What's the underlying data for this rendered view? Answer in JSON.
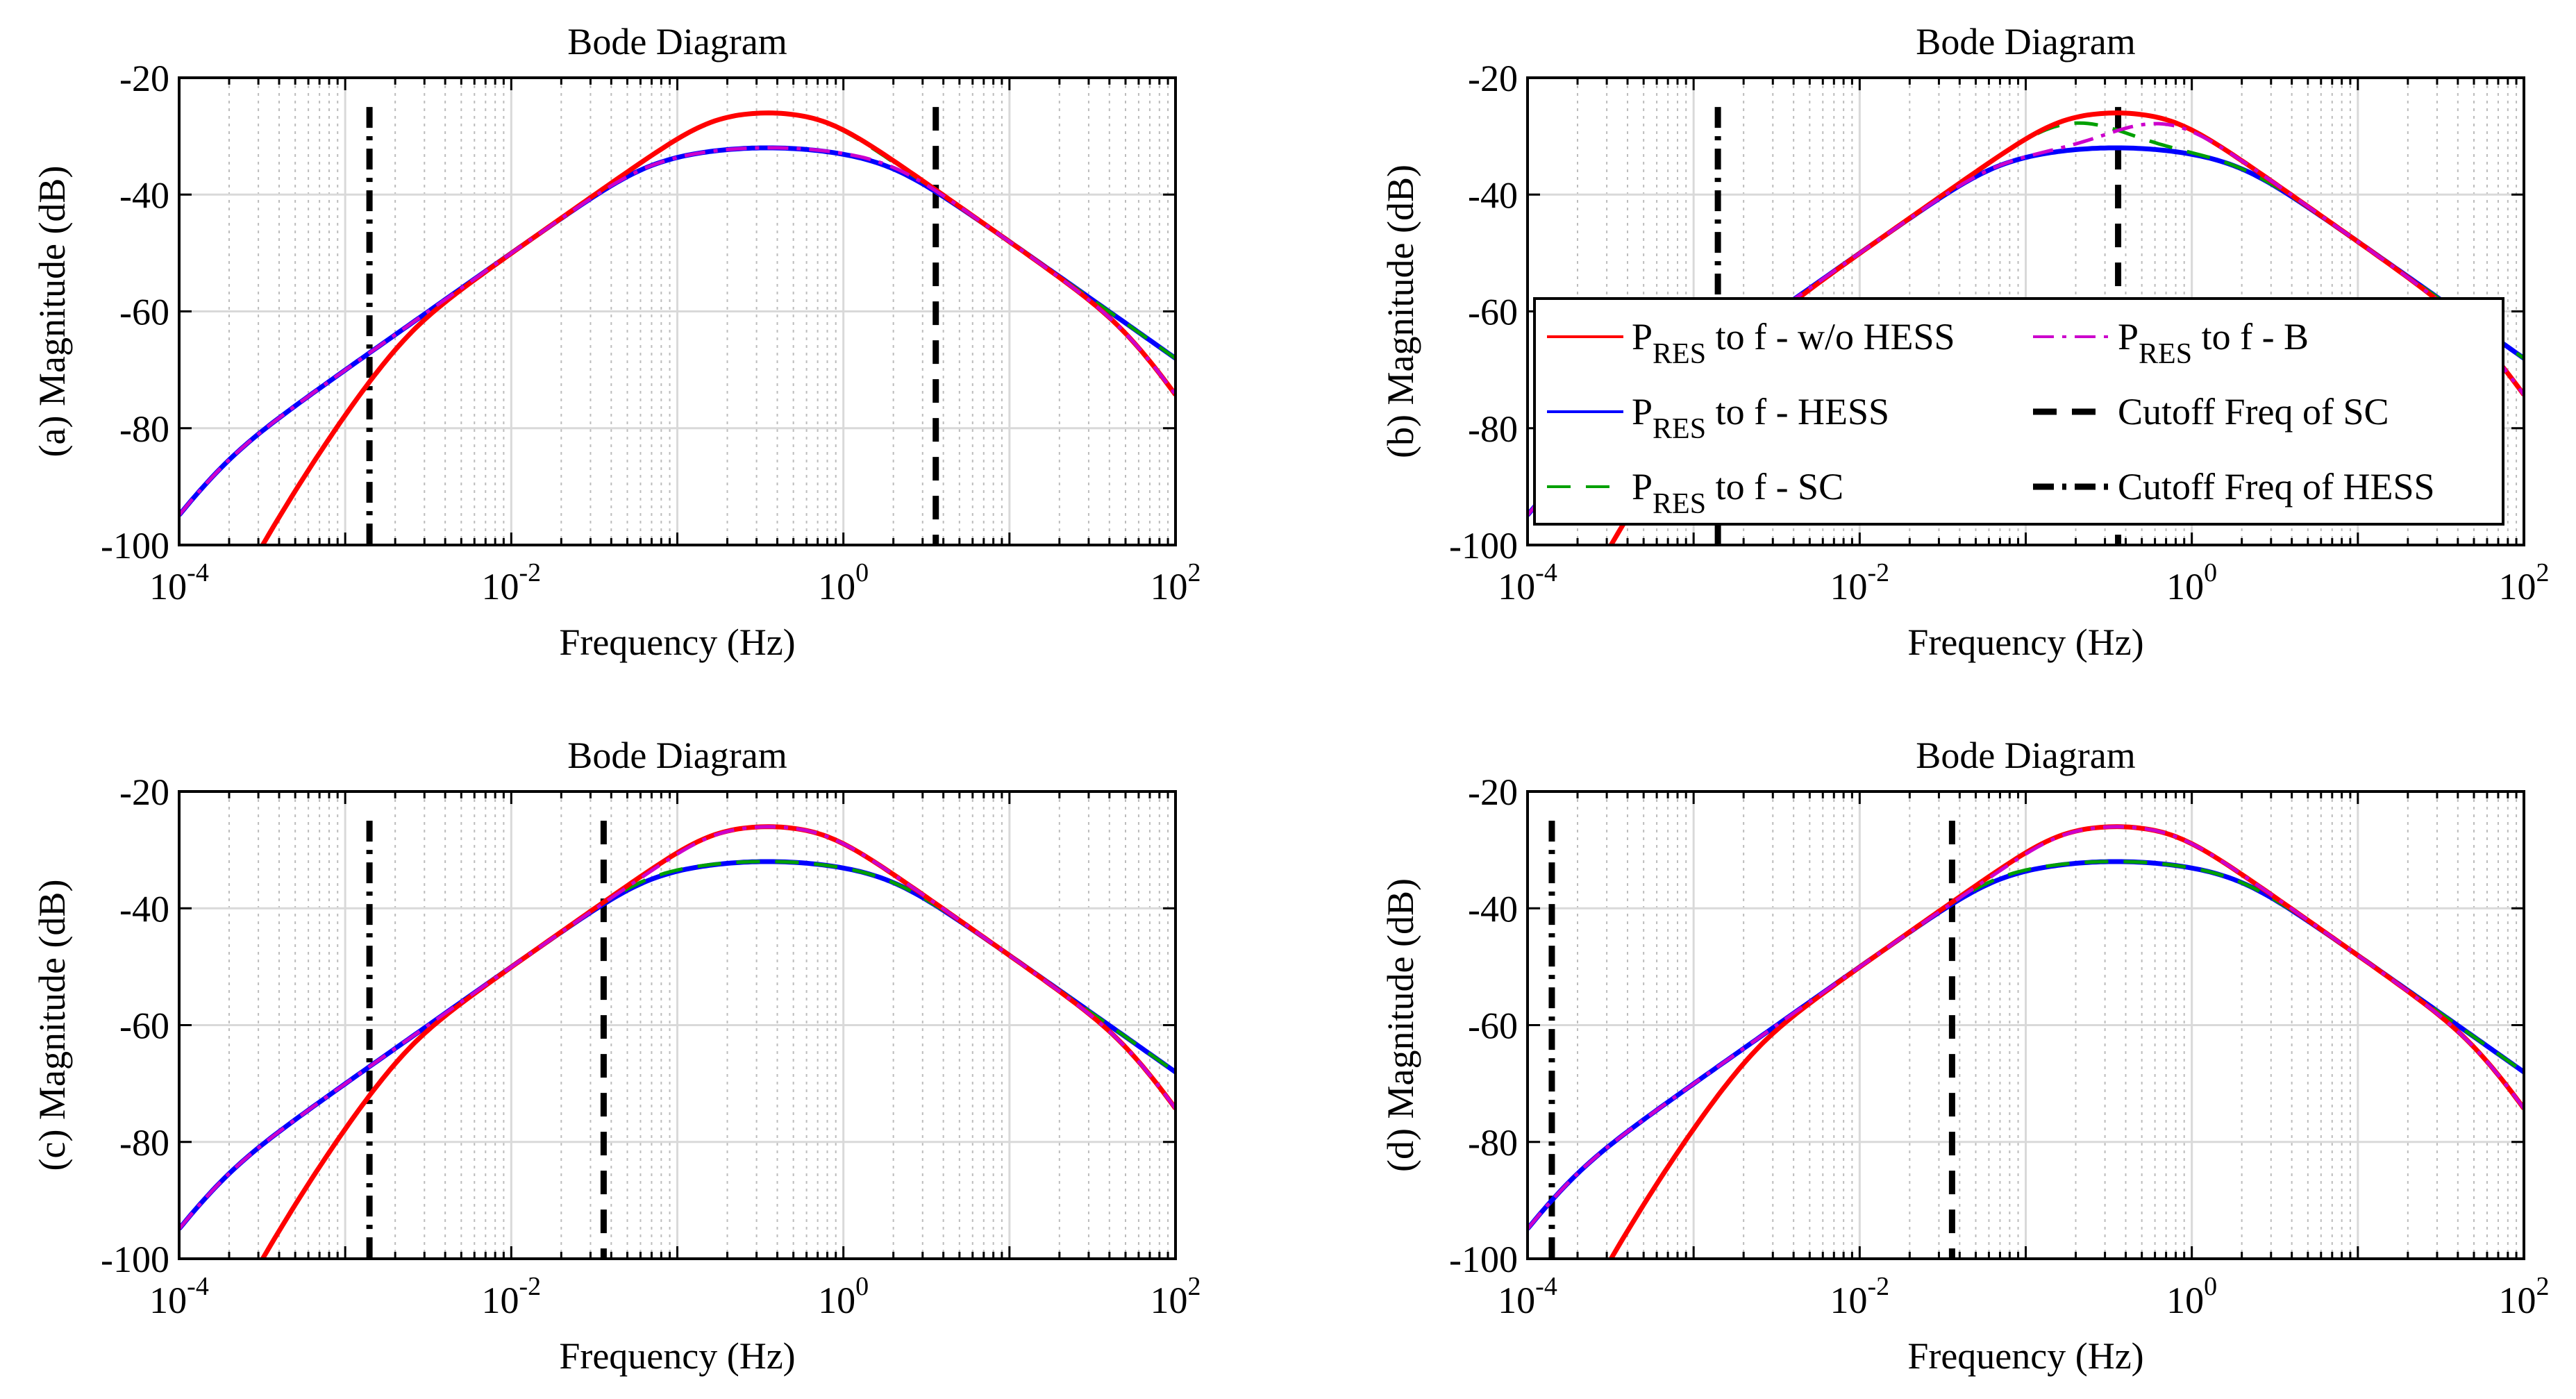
{
  "chart_data": [
    {
      "panel": "a",
      "type": "line",
      "title": "Bode Diagram",
      "xlabel": "Frequency  (Hz)",
      "ylabel": "(a) Magnitude (dB)",
      "xscale": "log",
      "xlim": [
        0.0001,
        100
      ],
      "ylim": [
        -100,
        -20
      ],
      "x_ticks": [
        {
          "base": "10",
          "exp": "-4"
        },
        {
          "base": "10",
          "exp": "-2"
        },
        {
          "base": "10",
          "exp": "0"
        },
        {
          "base": "10",
          "exp": "2"
        }
      ],
      "y_ticks": [
        "-20",
        "-40",
        "-60",
        "-80",
        "-100"
      ],
      "cutoff_sc_hz": 3.6,
      "cutoff_hess_hz": 0.0014,
      "legend": null
    },
    {
      "panel": "b",
      "type": "line",
      "title": "Bode Diagram",
      "xlabel": "Frequency  (Hz)",
      "ylabel": "(b) Magnitude (dB)",
      "xscale": "log",
      "xlim": [
        0.0001,
        100
      ],
      "ylim": [
        -100,
        -20
      ],
      "x_ticks": [
        {
          "base": "10",
          "exp": "-4"
        },
        {
          "base": "10",
          "exp": "-2"
        },
        {
          "base": "10",
          "exp": "0"
        },
        {
          "base": "10",
          "exp": "2"
        }
      ],
      "y_ticks": [
        "-20",
        "-40",
        "-60",
        "-80",
        "-100"
      ],
      "cutoff_sc_hz": 0.36,
      "cutoff_hess_hz": 0.0014,
      "legend": {
        "placement": "center-right",
        "entries": [
          {
            "main": "P",
            "sub": "RES",
            "rest": " to f - w/o HESS",
            "series": "wo_hess"
          },
          {
            "main": "P",
            "sub": "RES",
            "rest": " to f - B",
            "series": "b"
          },
          {
            "main": "P",
            "sub": "RES",
            "rest": " to f - HESS",
            "series": "hess"
          },
          {
            "main": "",
            "sub": "",
            "rest": "Cutoff Freq of SC",
            "series": "cut_sc"
          },
          {
            "main": "P",
            "sub": "RES",
            "rest": " to f - SC",
            "series": "sc"
          },
          {
            "main": "",
            "sub": "",
            "rest": "Cutoff Freq of HESS",
            "series": "cut_hess"
          }
        ]
      }
    },
    {
      "panel": "c",
      "type": "line",
      "title": "Bode Diagram",
      "xlabel": "Frequency  (Hz)",
      "ylabel": "(c) Magnitude (dB)",
      "xscale": "log",
      "xlim": [
        0.0001,
        100
      ],
      "ylim": [
        -100,
        -20
      ],
      "x_ticks": [
        {
          "base": "10",
          "exp": "-4"
        },
        {
          "base": "10",
          "exp": "-2"
        },
        {
          "base": "10",
          "exp": "0"
        },
        {
          "base": "10",
          "exp": "2"
        }
      ],
      "y_ticks": [
        "-20",
        "-40",
        "-60",
        "-80",
        "-100"
      ],
      "cutoff_sc_hz": 0.036,
      "cutoff_hess_hz": 0.0014,
      "legend": null
    },
    {
      "panel": "d",
      "type": "line",
      "title": "Bode Diagram",
      "xlabel": "Frequency  (Hz)",
      "ylabel": "(d) Magnitude (dB)",
      "xscale": "log",
      "xlim": [
        0.0001,
        100
      ],
      "ylim": [
        -100,
        -20
      ],
      "x_ticks": [
        {
          "base": "10",
          "exp": "-4"
        },
        {
          "base": "10",
          "exp": "-2"
        },
        {
          "base": "10",
          "exp": "0"
        },
        {
          "base": "10",
          "exp": "2"
        }
      ],
      "y_ticks": [
        "-20",
        "-40",
        "-60",
        "-80",
        "-100"
      ],
      "cutoff_sc_hz": 0.036,
      "cutoff_hess_hz": 0.00014,
      "legend": null
    }
  ],
  "series_styles": {
    "wo_hess": {
      "color": "#ff0000",
      "dash": "solid",
      "plot": "peak",
      "peak_hz": 0.35,
      "peak_db": -26
    },
    "hess": {
      "color": "#0000ff",
      "dash": "solid",
      "plot": "flat",
      "peak_hz": 0.35,
      "peak_db": -32
    },
    "sc": {
      "color": "#00a000",
      "dash": "dashed",
      "plot": "mix"
    },
    "b": {
      "color": "#cc00cc",
      "dash": "dashdot",
      "plot": "mixb"
    },
    "cut_sc": {
      "color": "#000000",
      "dash": "dashed"
    },
    "cut_hess": {
      "color": "#000000",
      "dash": "dashdot"
    }
  },
  "asymptote": {
    "low_slope_db_per_decade": 20,
    "low_ref_hz": 0.0001,
    "low_ref_db": -90,
    "high_slope_db_per_decade": -20,
    "high_ref_hz": 100,
    "high_ref_db": -68
  }
}
